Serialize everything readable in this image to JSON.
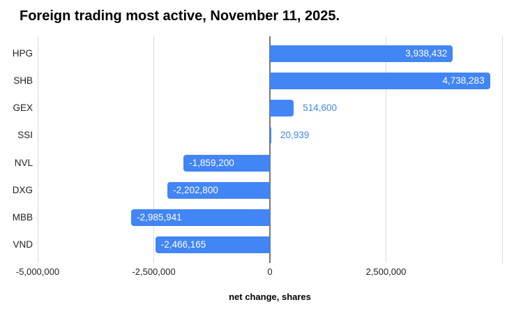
{
  "title": "Foreign trading most active, November 11, 2025.",
  "chart_data": {
    "type": "bar",
    "orientation": "horizontal",
    "title": "Foreign trading most active, November 11, 2025.",
    "categories": [
      "HPG",
      "SHB",
      "GEX",
      "SSI",
      "NVL",
      "DXG",
      "MBB",
      "VND"
    ],
    "values": [
      3938432,
      4738283,
      514600,
      20939,
      -1859200,
      -2202800,
      -2985941,
      -2466165
    ],
    "value_labels": [
      "3,938,432",
      "4,738,283",
      "514,600",
      "20,939",
      "-1,859,200",
      "-2,202,800",
      "-2,985,941",
      "-2,466,165"
    ],
    "xlabel": "net change, shares",
    "ylabel": "",
    "xlim": [
      -5000000,
      5000000
    ],
    "x_ticks": [
      -5000000,
      -2500000,
      0,
      2500000,
      5000000
    ],
    "x_tick_labels": [
      "-5,000,000",
      "-2,500,000",
      "0",
      "2,500,000",
      ""
    ],
    "grid": true,
    "legend": false,
    "colors": {
      "bar": "#4285F4",
      "label_inside": "#FFFFFF",
      "label_outside": "#4285F4",
      "gridline": "#D9D9D9",
      "zero_line": "#757575",
      "text": "#202124",
      "background": "#FFFFFF"
    }
  }
}
